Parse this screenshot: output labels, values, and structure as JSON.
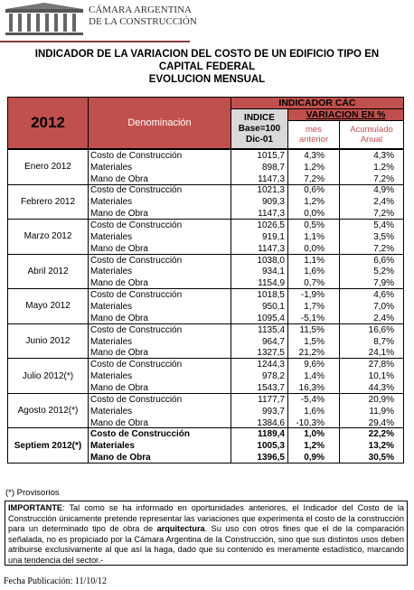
{
  "header": {
    "logo": [
      "CÁMARA ARGENTINA",
      "DE LA CONSTRUCCIÓN"
    ],
    "title": [
      "INDICADOR DE LA VARIACION DEL COSTO DE UN EDIFICIO TIPO EN",
      "CAPITAL FEDERAL",
      "EVOLUCION MENSUAL"
    ]
  },
  "table": {
    "year": "2012",
    "denomination": "Denominación",
    "indicator": "INDICADOR CÁC",
    "index": [
      "INDICE",
      "Base=100",
      "Dic-01"
    ],
    "variation": "VARIACION EN %",
    "monthly": [
      "mes",
      "anterior"
    ],
    "cumulative": [
      "Acumulado",
      "Anual"
    ],
    "months": [
      {
        "label": "Enero 2012",
        "rows": [
          [
            "Costo de Construcción",
            "1015,7",
            "4,3%",
            "4,3%"
          ],
          [
            "Materiales",
            "898,7",
            "1,2%",
            "1,2%"
          ],
          [
            "Mano de Obra",
            "1147,3",
            "7,2%",
            "7,2%"
          ]
        ]
      },
      {
        "label": "Febrero 2012",
        "rows": [
          [
            "Costo de Construcción",
            "1021,3",
            "0,6%",
            "4,9%"
          ],
          [
            "Materiales",
            "909,3",
            "1,2%",
            "2,4%"
          ],
          [
            "Mano de Obra",
            "1147,3",
            "0,0%",
            "7,2%"
          ]
        ]
      },
      {
        "label": "Marzo 2012",
        "rows": [
          [
            "Costo de Construcción",
            "1026,5",
            "0,5%",
            "5,4%"
          ],
          [
            "Materiales",
            "919,1",
            "1,1%",
            "3,5%"
          ],
          [
            "Mano de Obra",
            "1147,3",
            "0,0%",
            "7,2%"
          ]
        ]
      },
      {
        "label": "Abril 2012",
        "rows": [
          [
            "Costo de Construcción",
            "1038,0",
            "1,1%",
            "6,6%"
          ],
          [
            "Materiales",
            "934,1",
            "1,6%",
            "5,2%"
          ],
          [
            "Mano de Obra",
            "1154,9",
            "0,7%",
            "7,9%"
          ]
        ]
      },
      {
        "label": "Mayo 2012",
        "rows": [
          [
            "Costo de Construcción",
            "1018,5",
            "-1,9%",
            "4,6%"
          ],
          [
            "Materiales",
            "950,1",
            "1,7%",
            "7,0%"
          ],
          [
            "Mano de Obra",
            "1095,4",
            "-5,1%",
            "2,4%"
          ]
        ]
      },
      {
        "label": "Junio 2012",
        "rows": [
          [
            "Costo de Construcción",
            "1135,4",
            "11,5%",
            "16,6%"
          ],
          [
            "Materiales",
            "964,7",
            "1,5%",
            "8,7%"
          ],
          [
            "Mano de Obra",
            "1327,5",
            "21,2%",
            "24,1%"
          ]
        ]
      },
      {
        "label": "Julio 2012(*)",
        "rows": [
          [
            "Costo de Construcción",
            "1244,3",
            "9,6%",
            "27,8%"
          ],
          [
            "Materiales",
            "978,2",
            "1,4%",
            "10,1%"
          ],
          [
            "Mano de Obra",
            "1543,7",
            "16,3%",
            "44,3%"
          ]
        ]
      },
      {
        "label": "Agosto 2012(*)",
        "rows": [
          [
            "Costo de Construcción",
            "1177,7",
            "-5,4%",
            "20,9%"
          ],
          [
            "Materiales",
            "993,7",
            "1,6%",
            "11,9%"
          ],
          [
            "Mano de Obra",
            "1384,6",
            "-10,3%",
            "29,4%"
          ]
        ]
      },
      {
        "label": "Septiem 2012(*)",
        "bold": true,
        "rows": [
          [
            "Costo de Construcción",
            "1189,4",
            "1,0%",
            "22,2%"
          ],
          [
            "Materiales",
            "1005,3",
            "1,2%",
            "13,2%"
          ],
          [
            "Mano de Obra",
            "1396,5",
            "0,9%",
            "30,5%"
          ]
        ]
      }
    ]
  },
  "footnote": "(*) Provisorios",
  "important": {
    "label": "IMPORTANTE",
    "text_1": ": Tal como se ha informado en oportunidades anteriores, el Indicador del Costo de la Construcción únicamente pretende representar las variaciones que experimenta el costo de la construcción para un determinado tipo de obra de ",
    "bold_word": "arquitectura",
    "text_2": ". Su uso con otros fines que el de la comparación señalada, no es propiciado por la Cámara Argentina de la Construcción, sino que sus distintos usos deben atribuirse exclusivamente al que así la haga, dado que su contenido es meramente estadístico, marcando una tendencia del sector.-"
  },
  "date": "Fecha Publicación: 11/10/12"
}
